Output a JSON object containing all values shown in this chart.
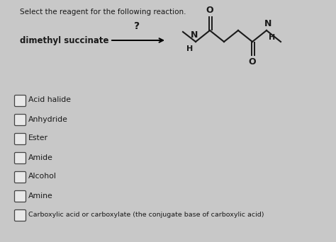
{
  "title": "Select the reagent for the following reaction.",
  "reactant": "dimethyl succinate",
  "arrow_label": "?",
  "options": [
    "Acid halide",
    "Anhydride",
    "Ester",
    "Amide",
    "Alcohol",
    "Amine",
    "Carboxylic acid or carboxylate (the conjugate base of carboxylic acid)"
  ],
  "bg_color": "#c8c8c8",
  "text_color": "#1a1a1a",
  "title_fontsize": 7.5,
  "option_fontsize": 7.8,
  "reactant_fontsize": 8.5,
  "structure_color": "#1a1a1a"
}
